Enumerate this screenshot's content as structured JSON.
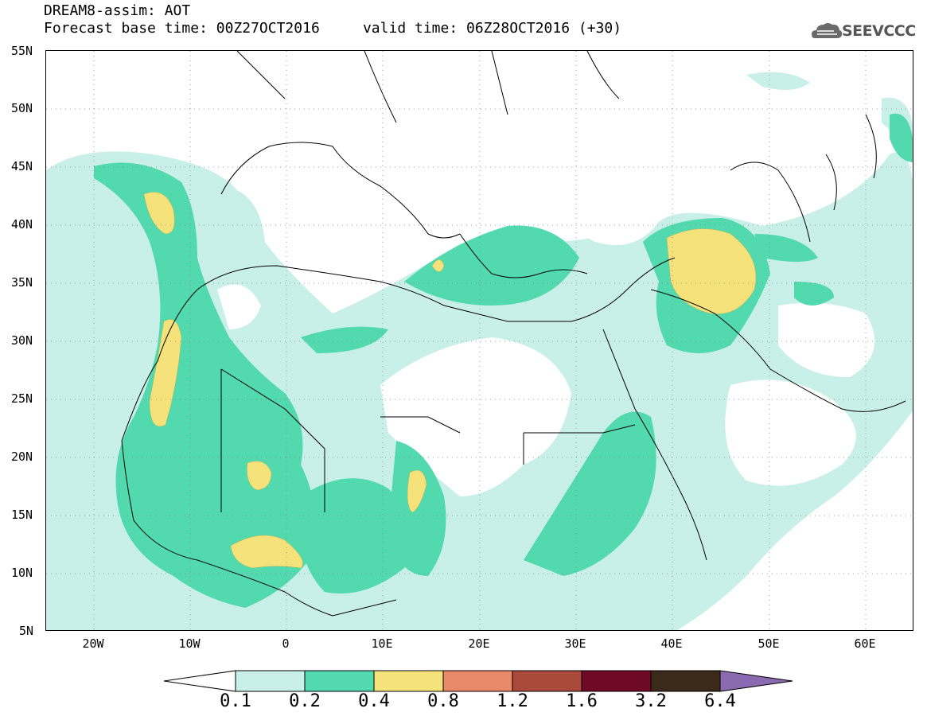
{
  "header": {
    "title_line1": "DREAM8-assim: AOT",
    "title_line2": "Forecast base time: 00Z27OCT2016     valid time: 06Z28OCT2016 (+30)",
    "logo_text": "SEEVCCC"
  },
  "map": {
    "lat_labels": [
      "55N",
      "50N",
      "45N",
      "40N",
      "35N",
      "30N",
      "25N",
      "20N",
      "15N",
      "10N",
      "5N"
    ],
    "lon_labels": [
      "20W",
      "10W",
      "0",
      "10E",
      "20E",
      "30E",
      "40E",
      "50E",
      "60E"
    ],
    "field": "AOT",
    "colorbar": {
      "labels": [
        "0.1",
        "0.2",
        "0.4",
        "0.8",
        "1.2",
        "1.6",
        "3.2",
        "6.4"
      ],
      "colors": [
        "#c8f0e8",
        "#52d9ad",
        "#f5e27a",
        "#e8896a",
        "#a94a3b",
        "#6e0a26",
        "#3b2a1a",
        "#8a6ab0"
      ]
    }
  }
}
